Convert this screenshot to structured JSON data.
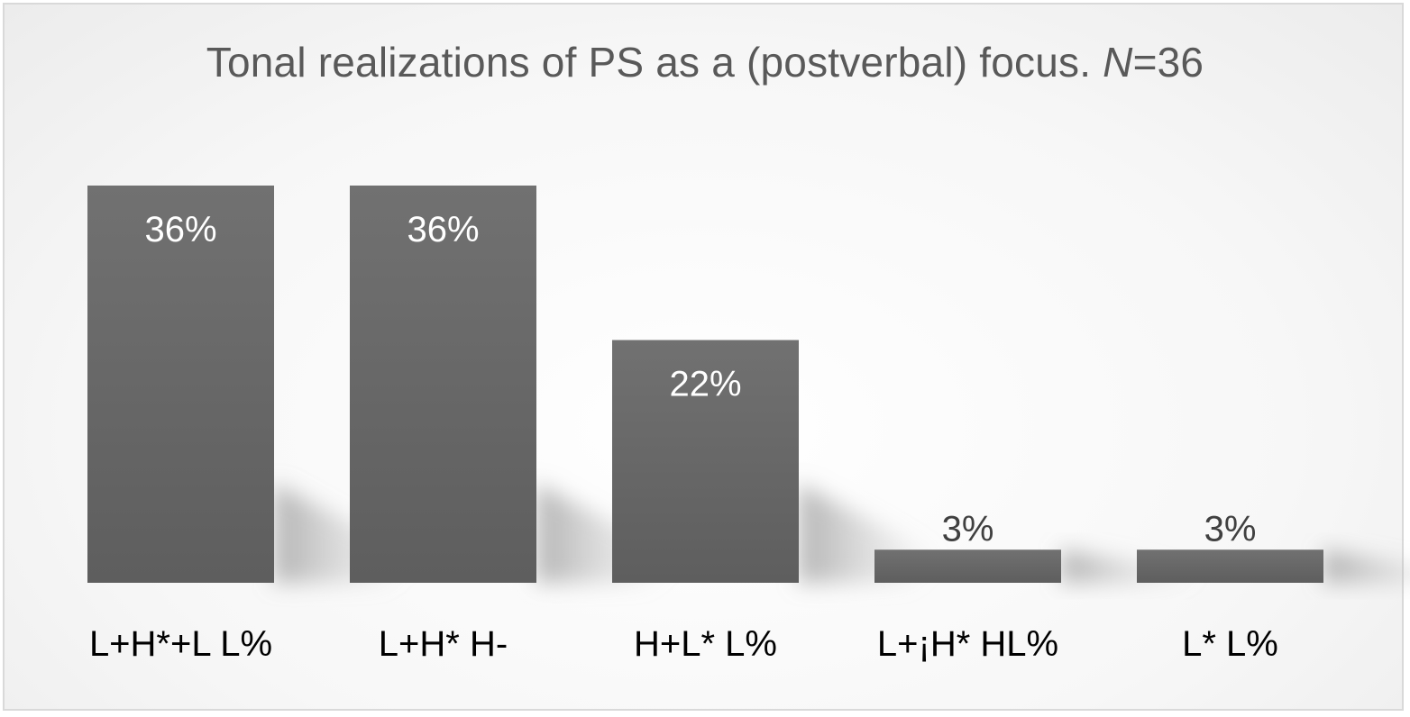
{
  "chart_data": {
    "type": "bar",
    "title": {
      "text": "Tonal realizations of PS as a (postverbal) focus. ",
      "n_symbol": "N",
      "n_value": "=36"
    },
    "categories": [
      "L+H*+L L%",
      "L+H* H-",
      "H+L* L%",
      "L+¡H* HL%",
      "L* L%"
    ],
    "values": [
      36,
      36,
      22,
      3,
      3
    ],
    "data_labels": [
      "36%",
      "36%",
      "22%",
      "3%",
      "3%"
    ],
    "ylim": [
      0,
      40
    ],
    "grid": false,
    "legend": "none",
    "bar_color": "#6b6b6b",
    "inside_label_color": "#ffffff",
    "outside_label_color": "#404040"
  }
}
